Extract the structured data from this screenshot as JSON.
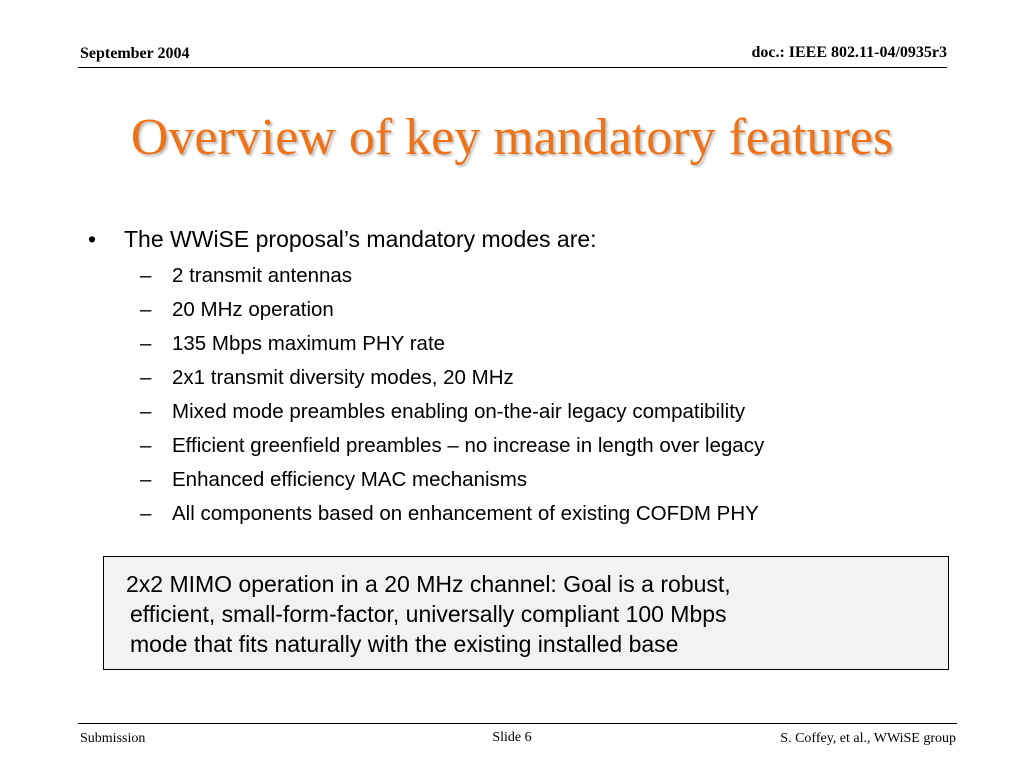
{
  "header": {
    "date": "September 2004",
    "doc_id": "doc.: IEEE 802.11-04/0935r3"
  },
  "title": "Overview of key mandatory features",
  "bullet": {
    "text": "The WWiSE proposal’s mandatory modes are:",
    "items": [
      "2 transmit antennas",
      "20 MHz operation",
      "135 Mbps maximum PHY rate",
      "2x1 transmit diversity modes, 20 MHz",
      "Mixed mode preambles enabling on-the-air legacy compatibility",
      "Efficient greenfield preambles – no increase in length over legacy",
      "Enhanced efficiency MAC mechanisms",
      "All components based on enhancement of existing COFDM PHY"
    ]
  },
  "callout": {
    "lines": [
      "2x2 MIMO operation in a 20 MHz channel:  Goal is a robust,",
      "efficient, small-form-factor, universally compliant 100 Mbps",
      "mode that fits naturally with the existing installed base"
    ]
  },
  "footer": {
    "left": "Submission",
    "center": "Slide 6",
    "right": "S. Coffey, et al., WWiSE group"
  }
}
